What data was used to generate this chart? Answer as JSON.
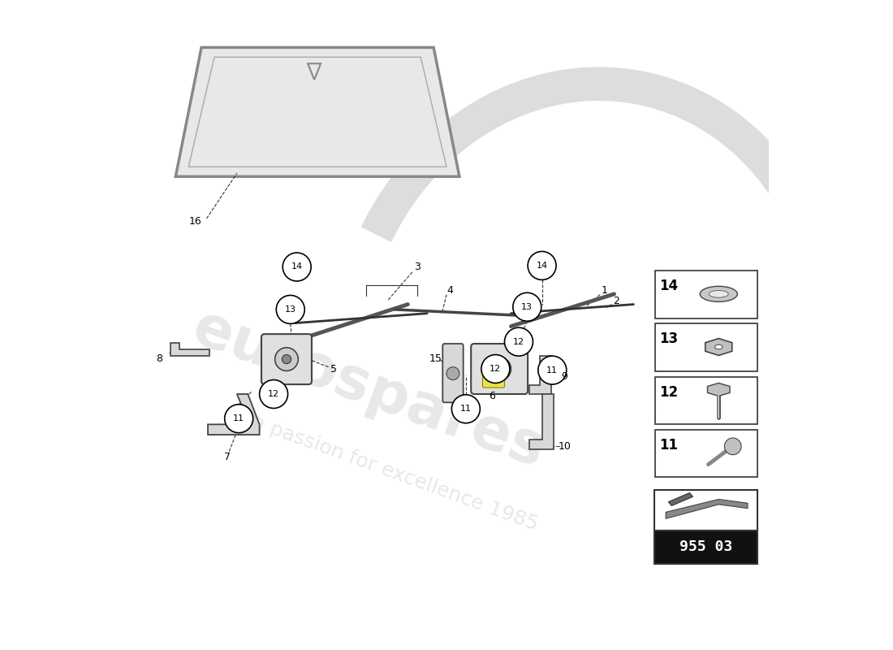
{
  "background_color": "#ffffff",
  "fig_width": 11.0,
  "fig_height": 8.0,
  "watermark_line1": "eurospares",
  "watermark_line2": "a passion for excellence 1985",
  "part_number_box": "955 03",
  "text_color": "#000000",
  "line_color": "#333333",
  "circle_color": "#000000",
  "windshield_color": "#e8e8e8",
  "windshield_border": "#888888"
}
